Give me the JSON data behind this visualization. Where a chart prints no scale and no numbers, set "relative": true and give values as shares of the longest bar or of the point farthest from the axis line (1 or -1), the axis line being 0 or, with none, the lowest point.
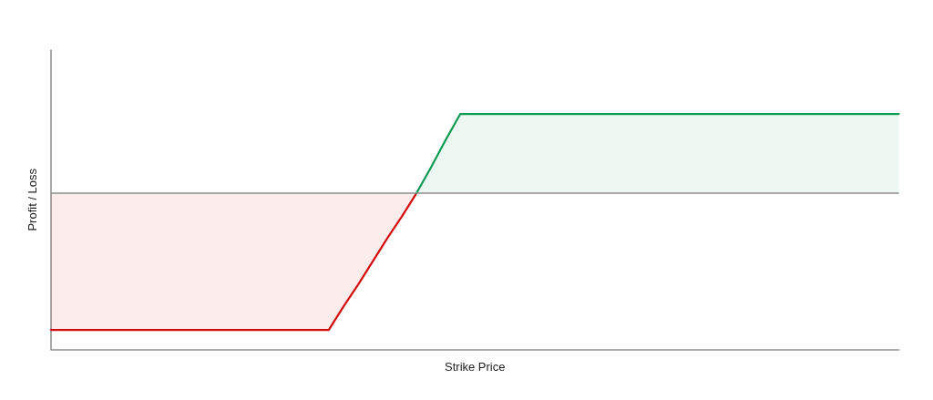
{
  "chart_data": {
    "type": "area",
    "xlabel": "Strike Price",
    "ylabel": "Profit / Loss",
    "relative": true,
    "categories": [
      null,
      null,
      null,
      null,
      null,
      null,
      null,
      null,
      null,
      null,
      null,
      null,
      null,
      null,
      null,
      null,
      null,
      null,
      null,
      null,
      null,
      null,
      null,
      null,
      null,
      null,
      null,
      null,
      null,
      null,
      null,
      null,
      null,
      null,
      null,
      null,
      null,
      null,
      null,
      null,
      null,
      null,
      null,
      null,
      null,
      null,
      null,
      null,
      null,
      null,
      null,
      null,
      null,
      null,
      null,
      null,
      null,
      null,
      null
    ],
    "series": [
      {
        "color": "#d40b0b",
        "values": [
          -1,
          -1,
          -1,
          -1,
          -1,
          -1,
          -1,
          -1,
          -1,
          -1,
          -1,
          -1,
          -1,
          -1,
          -1,
          -1,
          -1,
          -1,
          -1,
          -1,
          -0.83,
          -0.67,
          -0.5,
          -0.33,
          -0.17,
          0,
          null,
          null,
          null,
          null,
          null,
          null,
          null,
          null,
          null,
          null,
          null,
          null,
          null,
          null,
          null,
          null,
          null,
          null,
          null,
          null,
          null,
          null,
          null,
          null,
          null,
          null,
          null,
          null,
          null,
          null,
          null,
          null,
          null
        ]
      },
      {
        "color": "#0a9a52",
        "values": [
          null,
          null,
          null,
          null,
          null,
          null,
          null,
          null,
          null,
          null,
          null,
          null,
          null,
          null,
          null,
          null,
          null,
          null,
          null,
          null,
          null,
          null,
          null,
          null,
          null,
          0,
          0.19,
          0.39,
          0.58,
          0.58,
          0.58,
          0.58,
          0.58,
          0.58,
          0.58,
          0.58,
          0.58,
          0.58,
          0.58,
          0.58,
          0.58,
          0.58,
          0.58,
          0.58,
          0.58,
          0.58,
          0.58,
          0.58,
          0.58,
          0.58,
          0.58,
          0.58,
          0.58,
          0.58,
          0.58,
          0.58,
          0.58,
          0.58,
          0.58
        ]
      }
    ],
    "ref_lines": [
      {
        "axis": "y",
        "value": 0,
        "color": "#8c8c8c"
      }
    ]
  }
}
